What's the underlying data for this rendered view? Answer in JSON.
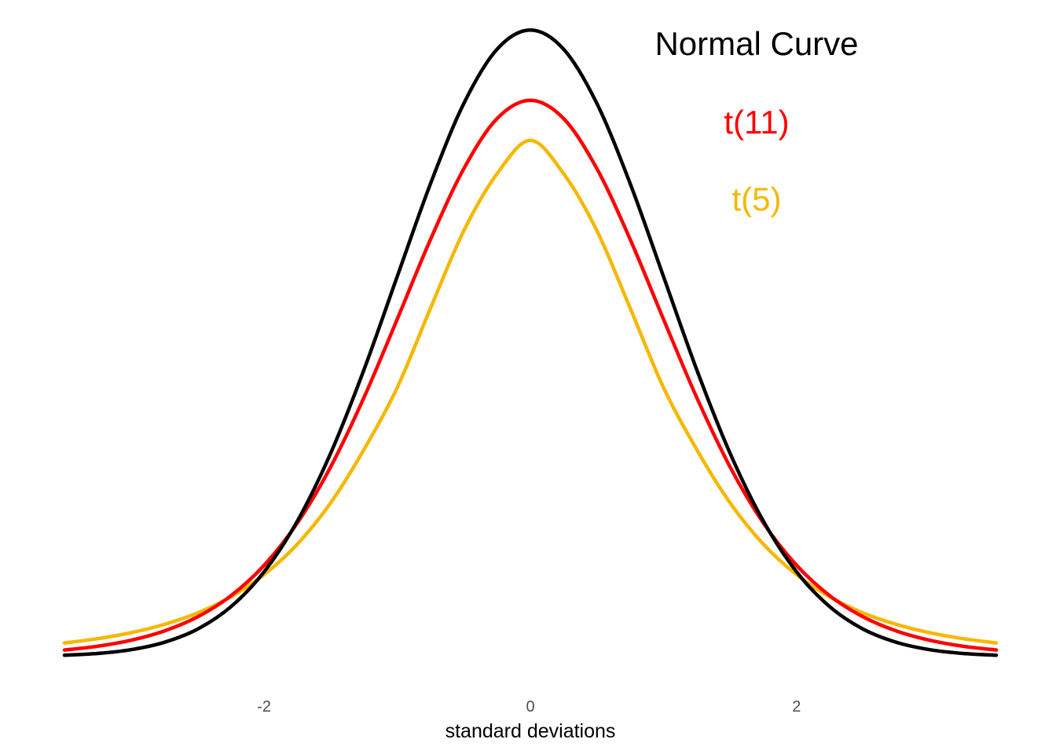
{
  "chart_data": {
    "type": "line",
    "title": "",
    "xlabel": "standard deviations",
    "ylabel": "",
    "xlim": [
      -3.5,
      3.5
    ],
    "ylim": [
      0,
      0.4
    ],
    "x_ticks": [
      -2,
      0,
      2
    ],
    "x_tick_labels": [
      "-2",
      "0",
      "2"
    ],
    "grid": false,
    "legend": "inline labels, top-right of peak",
    "series": [
      {
        "name": "Normal Curve",
        "color": "#000000",
        "x": [
          -3.5,
          -3.25,
          -3.0,
          -2.75,
          -2.5,
          -2.25,
          -2.0,
          -1.75,
          -1.5,
          -1.25,
          -1.0,
          -0.75,
          -0.5,
          -0.25,
          0.0,
          0.25,
          0.5,
          0.75,
          1.0,
          1.25,
          1.5,
          1.75,
          2.0,
          2.25,
          2.5,
          2.75,
          3.0,
          3.25,
          3.5
        ],
        "y": [
          0.0009,
          0.002,
          0.0044,
          0.0091,
          0.0175,
          0.0317,
          0.054,
          0.0863,
          0.1295,
          0.1826,
          0.242,
          0.3011,
          0.3521,
          0.3867,
          0.3989,
          0.3867,
          0.3521,
          0.3011,
          0.242,
          0.1826,
          0.1295,
          0.0863,
          0.054,
          0.0317,
          0.0175,
          0.0091,
          0.0044,
          0.002,
          0.0009
        ]
      },
      {
        "name": "t(11)",
        "color": "#ff0000",
        "x": [
          -3.5,
          -3.25,
          -3.0,
          -2.75,
          -2.5,
          -2.25,
          -2.0,
          -1.75,
          -1.5,
          -1.25,
          -1.0,
          -0.75,
          -0.5,
          -0.25,
          0.0,
          0.25,
          0.5,
          0.75,
          1.0,
          1.25,
          1.5,
          1.75,
          2.0,
          2.25,
          2.5,
          2.75,
          3.0,
          3.25,
          3.5
        ],
        "y": [
          0.0042,
          0.0066,
          0.0104,
          0.0163,
          0.0253,
          0.0387,
          0.0581,
          0.0851,
          0.1208,
          0.1649,
          0.2148,
          0.2656,
          0.3106,
          0.3425,
          0.3541,
          0.3425,
          0.3106,
          0.2656,
          0.2148,
          0.1649,
          0.1208,
          0.0851,
          0.0581,
          0.0387,
          0.0253,
          0.0163,
          0.0104,
          0.0066,
          0.0042
        ]
      },
      {
        "name": "t(5)",
        "color": "#f5b800",
        "x": [
          -3.5,
          -3.25,
          -3.0,
          -2.75,
          -2.5,
          -2.25,
          -2.0,
          -1.75,
          -1.5,
          -1.25,
          -1.0,
          -0.75,
          -0.5,
          -0.25,
          0.0,
          0.25,
          0.5,
          0.75,
          1.0,
          1.25,
          1.5,
          1.75,
          2.0,
          2.25,
          2.5,
          2.75,
          3.0,
          3.25,
          3.5
        ],
        "y": [
          0.0087,
          0.0114,
          0.0152,
          0.0205,
          0.0278,
          0.038,
          0.0522,
          0.0716,
          0.0979,
          0.1318,
          0.1713,
          0.2218,
          0.2711,
          0.3074,
          0.3286,
          0.3074,
          0.2711,
          0.2218,
          0.1713,
          0.1318,
          0.0979,
          0.0716,
          0.0522,
          0.038,
          0.0278,
          0.0205,
          0.0152,
          0.0114,
          0.0087
        ]
      }
    ]
  }
}
